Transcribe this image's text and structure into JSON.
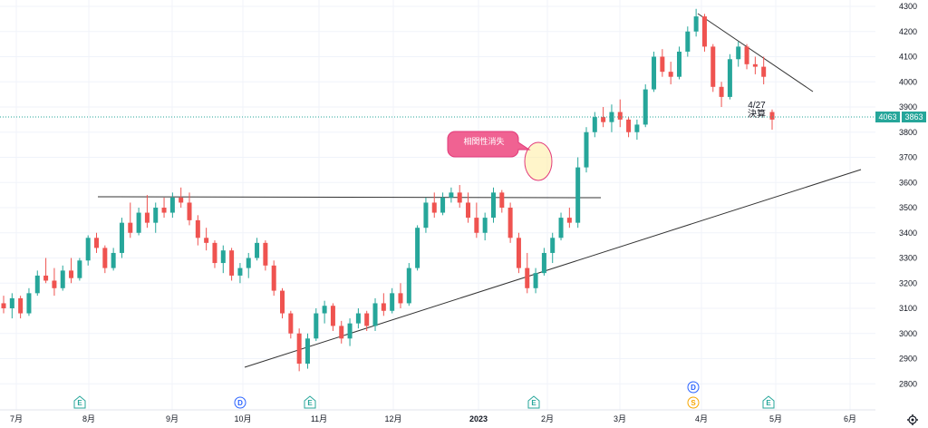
{
  "chart_data": {
    "type": "candlestick",
    "y_axis": {
      "ticks": [
        "4300",
        "4200",
        "4100",
        "4000",
        "3900",
        "3800",
        "3700",
        "3600",
        "3500",
        "3400",
        "3300",
        "3200",
        "3100",
        "3000",
        "2900",
        "2800"
      ],
      "range": [
        2750,
        4320
      ]
    },
    "x_axis": {
      "ticks": [
        "7月",
        "8月",
        "9月",
        "10月",
        "11月",
        "12月",
        "2023",
        "2月",
        "3月",
        "4月",
        "5月",
        "6月"
      ]
    },
    "last_price": {
      "value": "3863",
      "prev_label": "4063"
    },
    "annotations": {
      "earnings_note_date": "4/27",
      "earnings_note_text": "決算",
      "callout": "相関性消失"
    },
    "event_badges": [
      "E",
      "D",
      "E",
      "E",
      "D",
      "S",
      "E"
    ],
    "candles": [
      [
        3120,
        3150,
        3080,
        3100
      ],
      [
        3100,
        3160,
        3060,
        3140
      ],
      [
        3140,
        3150,
        3060,
        3080
      ],
      [
        3080,
        3180,
        3070,
        3160
      ],
      [
        3160,
        3250,
        3150,
        3230
      ],
      [
        3230,
        3300,
        3200,
        3210
      ],
      [
        3210,
        3260,
        3150,
        3180
      ],
      [
        3180,
        3270,
        3170,
        3250
      ],
      [
        3250,
        3300,
        3200,
        3220
      ],
      [
        3220,
        3300,
        3210,
        3290
      ],
      [
        3290,
        3390,
        3270,
        3380
      ],
      [
        3380,
        3400,
        3320,
        3340
      ],
      [
        3340,
        3350,
        3240,
        3260
      ],
      [
        3260,
        3340,
        3250,
        3320
      ],
      [
        3320,
        3460,
        3300,
        3440
      ],
      [
        3440,
        3520,
        3380,
        3400
      ],
      [
        3400,
        3500,
        3390,
        3480
      ],
      [
        3480,
        3550,
        3420,
        3440
      ],
      [
        3440,
        3520,
        3400,
        3500
      ],
      [
        3500,
        3540,
        3460,
        3480
      ],
      [
        3480,
        3560,
        3460,
        3540
      ],
      [
        3540,
        3580,
        3500,
        3520
      ],
      [
        3520,
        3560,
        3430,
        3450
      ],
      [
        3450,
        3470,
        3350,
        3380
      ],
      [
        3380,
        3420,
        3330,
        3360
      ],
      [
        3360,
        3370,
        3260,
        3280
      ],
      [
        3280,
        3350,
        3240,
        3330
      ],
      [
        3330,
        3340,
        3210,
        3230
      ],
      [
        3230,
        3280,
        3200,
        3260
      ],
      [
        3260,
        3320,
        3220,
        3300
      ],
      [
        3300,
        3380,
        3290,
        3360
      ],
      [
        3360,
        3370,
        3250,
        3270
      ],
      [
        3270,
        3290,
        3150,
        3170
      ],
      [
        3170,
        3180,
        3060,
        3080
      ],
      [
        3080,
        3090,
        2980,
        3000
      ],
      [
        3000,
        3020,
        2850,
        2880
      ],
      [
        2880,
        3000,
        2860,
        2980
      ],
      [
        2980,
        3100,
        2970,
        3080
      ],
      [
        3080,
        3130,
        3040,
        3110
      ],
      [
        3110,
        3120,
        3010,
        3030
      ],
      [
        3030,
        3050,
        2960,
        2980
      ],
      [
        2980,
        3060,
        2950,
        3040
      ],
      [
        3040,
        3100,
        3020,
        3080
      ],
      [
        3080,
        3090,
        3010,
        3030
      ],
      [
        3030,
        3140,
        3010,
        3120
      ],
      [
        3120,
        3160,
        3070,
        3090
      ],
      [
        3090,
        3180,
        3080,
        3160
      ],
      [
        3160,
        3200,
        3100,
        3120
      ],
      [
        3120,
        3280,
        3110,
        3260
      ],
      [
        3260,
        3430,
        3250,
        3420
      ],
      [
        3420,
        3540,
        3400,
        3520
      ],
      [
        3520,
        3560,
        3460,
        3480
      ],
      [
        3480,
        3560,
        3470,
        3540
      ],
      [
        3540,
        3580,
        3520,
        3560
      ],
      [
        3560,
        3590,
        3500,
        3520
      ],
      [
        3520,
        3560,
        3440,
        3460
      ],
      [
        3460,
        3520,
        3380,
        3400
      ],
      [
        3400,
        3480,
        3370,
        3460
      ],
      [
        3460,
        3580,
        3440,
        3560
      ],
      [
        3560,
        3570,
        3480,
        3500
      ],
      [
        3500,
        3520,
        3360,
        3380
      ],
      [
        3380,
        3400,
        3240,
        3260
      ],
      [
        3260,
        3320,
        3160,
        3180
      ],
      [
        3180,
        3260,
        3160,
        3240
      ],
      [
        3240,
        3340,
        3230,
        3320
      ],
      [
        3320,
        3400,
        3280,
        3380
      ],
      [
        3380,
        3480,
        3370,
        3460
      ],
      [
        3460,
        3500,
        3420,
        3440
      ],
      [
        3440,
        3700,
        3420,
        3660
      ],
      [
        3660,
        3820,
        3640,
        3800
      ],
      [
        3800,
        3880,
        3780,
        3860
      ],
      [
        3860,
        3900,
        3820,
        3840
      ],
      [
        3840,
        3910,
        3800,
        3880
      ],
      [
        3880,
        3930,
        3820,
        3850
      ],
      [
        3850,
        3860,
        3780,
        3800
      ],
      [
        3800,
        3850,
        3770,
        3830
      ],
      [
        3830,
        3990,
        3820,
        3970
      ],
      [
        3970,
        4120,
        3960,
        4100
      ],
      [
        4100,
        4130,
        4020,
        4040
      ],
      [
        4040,
        4080,
        3990,
        4020
      ],
      [
        4020,
        4140,
        4010,
        4120
      ],
      [
        4120,
        4220,
        4100,
        4200
      ],
      [
        4200,
        4290,
        4180,
        4260
      ],
      [
        4260,
        4270,
        4120,
        4140
      ],
      [
        4140,
        4150,
        3960,
        3980
      ],
      [
        3980,
        4000,
        3900,
        3940
      ],
      [
        3940,
        4110,
        3930,
        4090
      ],
      [
        4090,
        4160,
        4060,
        4140
      ],
      [
        4140,
        4150,
        4050,
        4070
      ],
      [
        4070,
        4100,
        4030,
        4060
      ],
      [
        4060,
        4100,
        3990,
        4020
      ],
      [
        3880,
        3890,
        3810,
        3850
      ]
    ]
  }
}
